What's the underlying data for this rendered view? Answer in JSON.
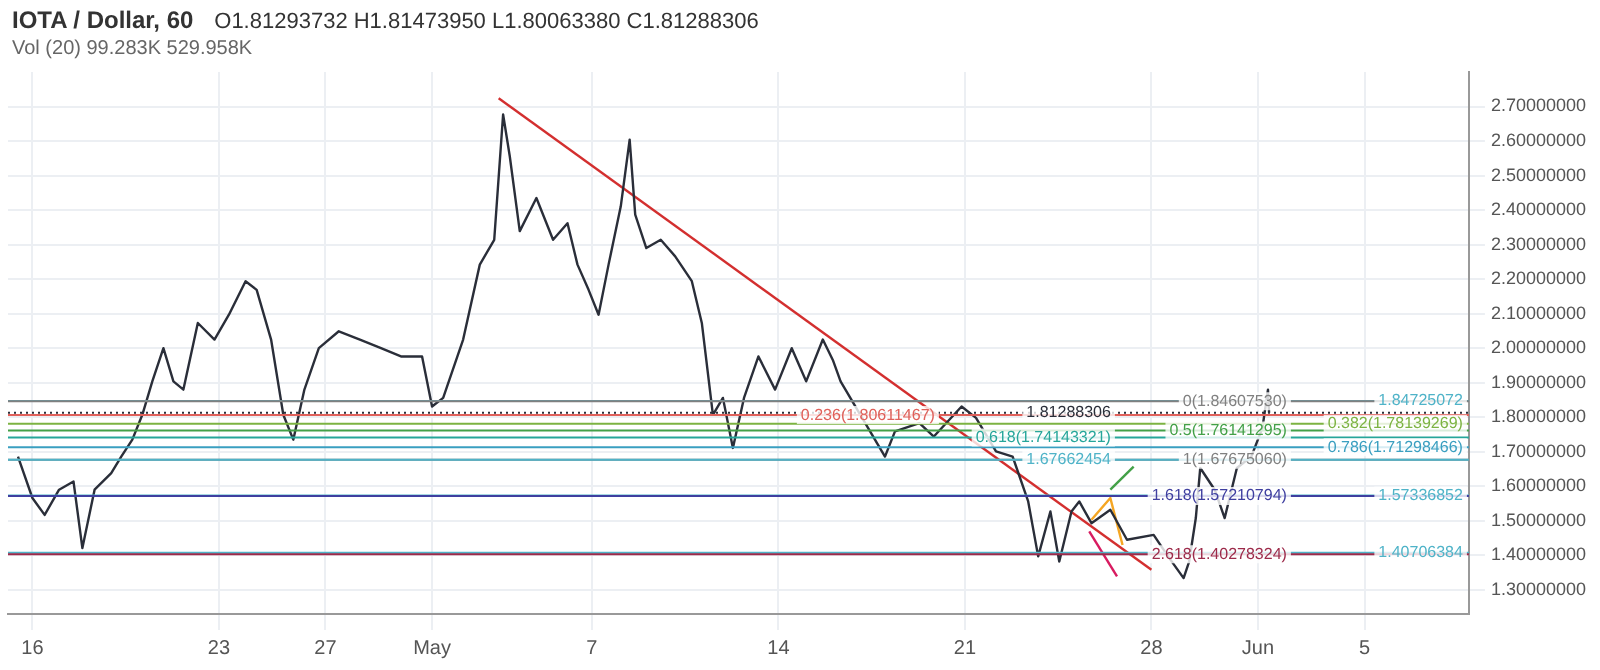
{
  "chart_data": {
    "type": "line",
    "title": "IOTA / Dollar, 60",
    "subtitle": "O1.81293732 H1.81473950 L1.80063380 C1.81288306",
    "annotations": [
      "Vol (20) 99.283K 529.958K"
    ],
    "xlim": [
      "--04-15T02:00",
      "--06-08T22:00"
    ],
    "xticks": [
      {
        "value": "--04-16",
        "label": "16"
      },
      {
        "value": "--04-23",
        "label": "23"
      },
      {
        "value": "--04-27",
        "label": "27"
      },
      {
        "value": "--05-01",
        "label": "May"
      },
      {
        "value": "--05-07",
        "label": "7"
      },
      {
        "value": "--05-14",
        "label": "14"
      },
      {
        "value": "--05-21",
        "label": "21"
      },
      {
        "value": "--05-28",
        "label": "28"
      },
      {
        "value": "--06-01",
        "label": "Jun"
      },
      {
        "value": "--06-05",
        "label": "5"
      }
    ],
    "ylim": [
      1.23,
      2.8
    ],
    "yticks": [
      {
        "value": 1.3,
        "label": "1.30000000"
      },
      {
        "value": 1.4,
        "label": "1.40000000"
      },
      {
        "value": 1.5,
        "label": "1.50000000"
      },
      {
        "value": 1.6,
        "label": "1.60000000"
      },
      {
        "value": 1.7,
        "label": "1.70000000"
      },
      {
        "value": 1.8,
        "label": "1.80000000"
      },
      {
        "value": 1.9,
        "label": "1.90000000"
      },
      {
        "value": 2.0,
        "label": "2.00000000"
      },
      {
        "value": 2.1,
        "label": "2.10000000"
      },
      {
        "value": 2.2,
        "label": "2.20000000"
      },
      {
        "value": 2.3,
        "label": "2.30000000"
      },
      {
        "value": 2.4,
        "label": "2.40000000"
      },
      {
        "value": 2.5,
        "label": "2.50000000"
      },
      {
        "value": 2.6,
        "label": "2.60000000"
      },
      {
        "value": 2.7,
        "label": "2.70000000"
      }
    ],
    "grid": true,
    "legend": false,
    "marker": "none",
    "line_style": "solid",
    "series": [
      {
        "color": "#2a2e39",
        "x": [
          "--04-15T11:00",
          "--04-16T00:00",
          "--04-16T11:00",
          "--04-17T00:00",
          "--04-17T13:00",
          "--04-17T21:00",
          "--04-18T08:00",
          "--04-18T23:00",
          "--04-19T08:00",
          "--04-19T18:00",
          "--04-20T03:00",
          "--04-20T12:00",
          "--04-20T22:00",
          "--04-21T07:00",
          "--04-21T16:00",
          "--04-22T05:00",
          "--04-22T20:00",
          "--04-23T09:00",
          "--04-24T00:00",
          "--04-24T10:00",
          "--04-24T23:00",
          "--04-25T10:00",
          "--04-25T19:00",
          "--04-26T05:00",
          "--04-26T18:00",
          "--04-27T12:00",
          "--04-28T07:00",
          "--04-29T02:00",
          "--04-29T20:00",
          "--04-30T15:00",
          "--05-01T00:00",
          "--05-01T10:00",
          "--05-02T04:00",
          "--05-02T19:00",
          "--05-03T08:00",
          "--05-03T16:00",
          "--05-03T22:00",
          "--05-04T07:00",
          "--05-04T22:00",
          "--05-05T13:00",
          "--05-06T02:00",
          "--05-06T11:00",
          "--05-06T21:00",
          "--05-07T06:00",
          "--05-07T15:00",
          "--05-08T02:00",
          "--05-08T10:00",
          "--05-08T15:00",
          "--05-09T01:00",
          "--05-09T14:00",
          "--05-10T03:00",
          "--05-10T18:00",
          "--05-11T03:00",
          "--05-11T13:00",
          "--05-11T22:00",
          "--05-12T07:00",
          "--05-12T17:00",
          "--05-13T06:00",
          "--05-13T21:00",
          "--05-14T12:00",
          "--05-15T01:00",
          "--05-15T16:00",
          "--05-16T01:00",
          "--05-16T08:00",
          "--05-18T00:00",
          "--05-18T09:00",
          "--05-19T07:00",
          "--05-19T20:00",
          "--05-20T21:00",
          "--05-21T10:00",
          "--05-22T04:00",
          "--05-22T19:00",
          "--05-23T09:00",
          "--05-23T18:00",
          "--05-24T05:00",
          "--05-24T13:00",
          "--05-25T00:00",
          "--05-25T07:00",
          "--05-25T18:00",
          "--05-26T11:00",
          "--05-27T02:00",
          "--05-28T02:00",
          "--05-28T15:00",
          "--05-29T05:00",
          "--05-29T10:00",
          "--05-29T16:00",
          "--05-29T20:00",
          "--05-30T09:00",
          "--05-30T18:00",
          "--05-31T05:00",
          "--05-31T18:00",
          "--06-01T04:00",
          "--06-01T09:00",
          "--06-01T10:00"
        ],
        "values": [
          1.686,
          1.566,
          1.517,
          1.59,
          1.614,
          1.421,
          1.59,
          1.638,
          1.686,
          1.735,
          1.807,
          1.904,
          2.0,
          1.904,
          1.88,
          2.073,
          2.025,
          2.097,
          2.194,
          2.169,
          2.025,
          1.807,
          1.735,
          1.88,
          2.0,
          2.049,
          2.025,
          2.0,
          1.976,
          1.976,
          1.831,
          1.856,
          2.025,
          2.242,
          2.314,
          2.677,
          2.556,
          2.339,
          2.435,
          2.314,
          2.362,
          2.242,
          2.169,
          2.097,
          2.242,
          2.411,
          2.604,
          2.387,
          2.29,
          2.314,
          2.266,
          2.194,
          2.073,
          1.807,
          1.856,
          1.711,
          1.856,
          1.976,
          1.88,
          2.0,
          1.904,
          2.025,
          1.966,
          1.904,
          1.686,
          1.759,
          1.783,
          1.744,
          1.831,
          1.798,
          1.701,
          1.686,
          1.556,
          1.397,
          1.527,
          1.382,
          1.527,
          1.556,
          1.493,
          1.532,
          1.445,
          1.459,
          1.397,
          1.334,
          1.382,
          1.508,
          1.653,
          1.59,
          1.508,
          1.653,
          1.686,
          1.769,
          1.88,
          1.813
        ]
      },
      {
        "color": "#d32f2f",
        "x": [
          "--05-03T12:00",
          "--05-28T00:00"
        ],
        "values": [
          2.724,
          1.358
        ]
      },
      {
        "color": "#d81b60",
        "x": [
          "--05-25T16:00",
          "--05-26T17:00"
        ],
        "values": [
          1.469,
          1.339
        ]
      },
      {
        "color": "#f5a623",
        "x": [
          "--05-25T18:00",
          "--05-26T11:00",
          "--05-26T22:00"
        ],
        "values": [
          1.503,
          1.566,
          1.43
        ]
      },
      {
        "color": "#43a047",
        "x": [
          "--05-26T11:00",
          "--05-27T08:00"
        ],
        "values": [
          1.59,
          1.657
        ]
      }
    ],
    "ref_lines": [
      {
        "axis": "y",
        "value": 1.84725072,
        "label": "1.84725072",
        "color": "#4fb3c8"
      },
      {
        "axis": "y",
        "value": 1.8460753,
        "label": "0(1.84607530)",
        "color": "#808080"
      },
      {
        "axis": "y",
        "value": 1.81288306,
        "label": "1.81288306",
        "color": "#2a2e39",
        "line_style": "dotted"
      },
      {
        "axis": "y",
        "value": 1.80611467,
        "label": "0.236(1.80611467)",
        "color": "#e0605a"
      },
      {
        "axis": "y",
        "value": 1.78139269,
        "label": "0.382(1.78139269)",
        "color": "#7cb342"
      },
      {
        "axis": "y",
        "value": 1.76141295,
        "label": "0.5(1.76141295)",
        "color": "#43a047"
      },
      {
        "axis": "y",
        "value": 1.74143321,
        "label": "0.618(1.74143321)",
        "color": "#26a69a"
      },
      {
        "axis": "y",
        "value": 1.71298466,
        "label": "0.786(1.71298466)",
        "color": "#3a9fc0"
      },
      {
        "axis": "y",
        "value": 1.6767506,
        "label": "1(1.67675060)",
        "color": "#808080"
      },
      {
        "axis": "y",
        "value": 1.67662454,
        "label": "1.67662454",
        "color": "#4fb3c8"
      },
      {
        "axis": "y",
        "value": 1.57336852,
        "label": "1.57336852",
        "color": "#4fb3c8"
      },
      {
        "axis": "y",
        "value": 1.57210794,
        "label": "1.618(1.57210794)",
        "color": "#3f3fa0"
      },
      {
        "axis": "y",
        "value": 1.40706384,
        "label": "1.40706384",
        "color": "#4fb3c8"
      },
      {
        "axis": "y",
        "value": 1.40278324,
        "label": "2.618(1.40278324)",
        "color": "#9c2a4a"
      }
    ]
  }
}
